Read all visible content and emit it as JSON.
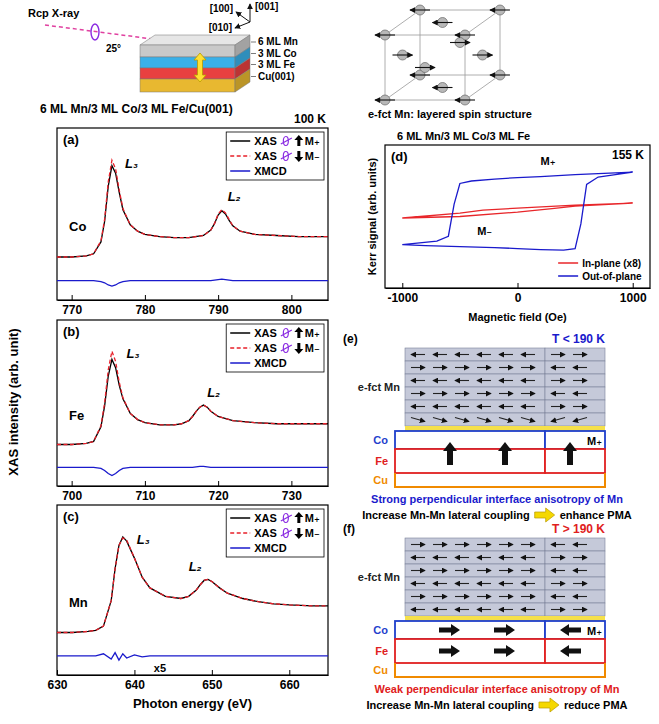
{
  "figure": {
    "title": "6 ML Mn/3 ML Co/3 ML Fe/Cu(001)",
    "temperature": "100 K",
    "y_label": "XAS intensity (arb. unit)"
  },
  "schematic": {
    "beam": "Rcp X-ray",
    "angle": "25°",
    "layers": [
      "6 ML Mn",
      "3 ML Co",
      "3 ML Fe",
      "Cu(001)"
    ],
    "colors": [
      "#c9c9c9",
      "#3ab0e8",
      "#e84040",
      "#e8b830"
    ],
    "directions": [
      "[100]",
      "[001]",
      "[010]"
    ],
    "lattice_caption": "e-fct Mn: layered spin structure"
  },
  "chart_data": [
    {
      "type": "line",
      "panel": "(a)",
      "element": "Co",
      "x": [
        768,
        770,
        772,
        773,
        774,
        774.5,
        775,
        775.5,
        776,
        776.5,
        777,
        778,
        779,
        780,
        782,
        784,
        786,
        788,
        789,
        789.5,
        790,
        790.5,
        791,
        791.5,
        792,
        793,
        795,
        798,
        801,
        805
      ],
      "xlim": [
        768,
        805
      ],
      "xticks": [
        770,
        780,
        790,
        800
      ],
      "ylim": [
        -0.3,
        1.3
      ],
      "tick_labels": "x",
      "legend": "top-right",
      "series": [
        {
          "name": "XAS",
          "state": "M₊",
          "color": "#000000",
          "line_style": "solid",
          "values": [
            0.1,
            0.1,
            0.11,
            0.13,
            0.24,
            0.43,
            0.76,
            0.95,
            0.88,
            0.7,
            0.54,
            0.4,
            0.34,
            0.31,
            0.29,
            0.28,
            0.28,
            0.3,
            0.35,
            0.41,
            0.49,
            0.53,
            0.5,
            0.44,
            0.39,
            0.34,
            0.31,
            0.3,
            0.29,
            0.29
          ]
        },
        {
          "name": "XAS",
          "state": "M₋",
          "color": "#e8202a",
          "line_style": "dashed",
          "values": [
            0.1,
            0.1,
            0.11,
            0.13,
            0.25,
            0.45,
            0.8,
            1.0,
            0.92,
            0.72,
            0.55,
            0.4,
            0.34,
            0.31,
            0.29,
            0.28,
            0.28,
            0.3,
            0.35,
            0.41,
            0.5,
            0.54,
            0.51,
            0.45,
            0.39,
            0.34,
            0.31,
            0.3,
            0.29,
            0.29
          ]
        },
        {
          "name": "XMCD",
          "color": "#1a1acc",
          "line_style": "solid",
          "values": [
            -0.12,
            -0.12,
            -0.12,
            -0.12,
            -0.13,
            -0.14,
            -0.16,
            -0.17,
            -0.16,
            -0.14,
            -0.13,
            -0.12,
            -0.12,
            -0.12,
            -0.12,
            -0.12,
            -0.12,
            -0.12,
            -0.12,
            -0.115,
            -0.11,
            -0.105,
            -0.11,
            -0.115,
            -0.12,
            -0.12,
            -0.12,
            -0.12,
            -0.12,
            -0.12
          ]
        }
      ],
      "peak_labels": [
        {
          "text": "L₃",
          "x": 777.3,
          "y": 0.93
        },
        {
          "text": "L₂",
          "x": 791.3,
          "y": 0.62
        }
      ]
    },
    {
      "type": "line",
      "panel": "(b)",
      "element": "Fe",
      "x": [
        698,
        700,
        702,
        703,
        704,
        704.5,
        705,
        705.5,
        706,
        706.5,
        707,
        708,
        709,
        710,
        712,
        714,
        715,
        716,
        716.5,
        717,
        717.5,
        718,
        718.5,
        719,
        720,
        722,
        725,
        728,
        731,
        735
      ],
      "xlim": [
        698,
        735
      ],
      "xticks": [
        700,
        710,
        720,
        730
      ],
      "ylim": [
        -0.3,
        1.3
      ],
      "tick_labels": "x",
      "legend": "top-right",
      "series": [
        {
          "name": "XAS",
          "state": "M₊",
          "color": "#000000",
          "line_style": "solid",
          "values": [
            0.1,
            0.1,
            0.11,
            0.13,
            0.27,
            0.47,
            0.76,
            0.92,
            0.84,
            0.67,
            0.54,
            0.4,
            0.34,
            0.31,
            0.29,
            0.29,
            0.3,
            0.33,
            0.37,
            0.42,
            0.46,
            0.48,
            0.46,
            0.42,
            0.37,
            0.33,
            0.31,
            0.3,
            0.3,
            0.3
          ]
        },
        {
          "name": "XAS",
          "state": "M₋",
          "color": "#e8202a",
          "line_style": "dashed",
          "values": [
            0.1,
            0.1,
            0.11,
            0.13,
            0.28,
            0.5,
            0.82,
            1.0,
            0.9,
            0.7,
            0.55,
            0.4,
            0.34,
            0.31,
            0.29,
            0.29,
            0.3,
            0.33,
            0.37,
            0.42,
            0.46,
            0.48,
            0.46,
            0.42,
            0.37,
            0.33,
            0.31,
            0.3,
            0.3,
            0.3
          ]
        },
        {
          "name": "XMCD",
          "color": "#1a1acc",
          "line_style": "solid",
          "values": [
            -0.12,
            -0.12,
            -0.12,
            -0.12,
            -0.13,
            -0.15,
            -0.18,
            -0.2,
            -0.18,
            -0.15,
            -0.13,
            -0.12,
            -0.12,
            -0.12,
            -0.12,
            -0.12,
            -0.12,
            -0.12,
            -0.12,
            -0.115,
            -0.11,
            -0.11,
            -0.115,
            -0.12,
            -0.12,
            -0.12,
            -0.12,
            -0.12,
            -0.12,
            -0.12
          ]
        }
      ],
      "peak_labels": [
        {
          "text": "L₃",
          "x": 707.5,
          "y": 0.93
        },
        {
          "text": "L₂",
          "x": 718.5,
          "y": 0.56
        }
      ]
    },
    {
      "type": "line",
      "panel": "(c)",
      "element": "Mn",
      "x_label": "Photon energy (eV)",
      "x": [
        630,
        632,
        634,
        635,
        636,
        637,
        637.5,
        638,
        638.5,
        639,
        640,
        641,
        642,
        644,
        646,
        647,
        648,
        648.5,
        649,
        649.5,
        650,
        651,
        652,
        654,
        656,
        658,
        660,
        663,
        665
      ],
      "xlim": [
        630,
        665
      ],
      "xticks": [
        630,
        640,
        650,
        660
      ],
      "ylim": [
        -0.3,
        1.3
      ],
      "tick_labels": "x",
      "legend": "top-right",
      "series": [
        {
          "name": "XAS",
          "state": "M₊",
          "color": "#000000",
          "line_style": "solid",
          "values": [
            0.1,
            0.1,
            0.11,
            0.12,
            0.16,
            0.4,
            0.7,
            0.92,
            1.0,
            0.96,
            0.8,
            0.62,
            0.52,
            0.44,
            0.42,
            0.44,
            0.5,
            0.55,
            0.59,
            0.6,
            0.58,
            0.52,
            0.47,
            0.42,
            0.39,
            0.37,
            0.36,
            0.35,
            0.35
          ]
        },
        {
          "name": "XAS",
          "state": "M₋",
          "color": "#e8202a",
          "line_style": "dashed",
          "values": [
            0.1,
            0.1,
            0.11,
            0.12,
            0.16,
            0.4,
            0.7,
            0.92,
            0.99,
            0.97,
            0.8,
            0.62,
            0.52,
            0.44,
            0.42,
            0.44,
            0.5,
            0.55,
            0.59,
            0.6,
            0.58,
            0.52,
            0.47,
            0.42,
            0.39,
            0.37,
            0.36,
            0.35,
            0.35
          ]
        },
        {
          "name": "XMCD",
          "color": "#1a1acc",
          "line_style": "solid",
          "values": [
            -0.12,
            -0.12,
            -0.12,
            -0.12,
            -0.1,
            -0.15,
            -0.09,
            -0.16,
            -0.1,
            -0.14,
            -0.11,
            -0.13,
            -0.12,
            -0.12,
            -0.12,
            -0.12,
            -0.12,
            -0.12,
            -0.12,
            -0.12,
            -0.12,
            -0.12,
            -0.12,
            -0.12,
            -0.12,
            -0.12,
            -0.12,
            -0.12,
            -0.12
          ]
        }
      ],
      "peak_labels": [
        {
          "text": "L₃",
          "x": 640.3,
          "y": 0.93
        },
        {
          "text": "L₂",
          "x": 647,
          "y": 0.68
        }
      ],
      "annotations": [
        {
          "text": "x5",
          "x": 642.5,
          "y": -0.27
        }
      ]
    },
    {
      "type": "line",
      "panel": "(d)",
      "title": "6 ML Mn/3 ML Co/3 ML Fe",
      "temperature": "155 K",
      "x_label": "Magnetic field (Oe)",
      "y_label": "Kerr signal (arb. units)",
      "xlim": [
        -1150,
        1150
      ],
      "xticks": [
        -1000,
        0,
        1000
      ],
      "ylim": [
        -1.5,
        1.4
      ],
      "tick_labels": "x",
      "legend": "bottom-right",
      "series": [
        {
          "name": "In-plane (x8)",
          "color": "#e8262a",
          "line_style": "solid",
          "x": [
            1000,
            500,
            0,
            -300,
            -500,
            -1000,
            -500,
            0,
            300,
            500,
            1000
          ],
          "values": [
            0.22,
            0.18,
            0.12,
            0.08,
            0.02,
            -0.08,
            -0.05,
            0.04,
            0.11,
            0.16,
            0.22
          ]
        },
        {
          "name": "Out-of-plane",
          "color": "#1a1acc",
          "line_style": "solid",
          "x": [
            1000,
            800,
            500,
            200,
            0,
            -200,
            -400,
            -500,
            -550,
            -600,
            -700,
            -1000,
            -800,
            -500,
            -200,
            0,
            200,
            400,
            500,
            550,
            600,
            700,
            1000
          ],
          "values": [
            0.85,
            0.83,
            0.8,
            0.76,
            0.74,
            0.71,
            0.67,
            0.62,
            0.2,
            -0.45,
            -0.55,
            -0.62,
            -0.64,
            -0.66,
            -0.68,
            -0.7,
            -0.72,
            -0.73,
            -0.7,
            -0.2,
            0.6,
            0.75,
            0.85
          ]
        }
      ],
      "annotations": [
        {
          "text": "M₊",
          "x": 200,
          "y": 1.0
        },
        {
          "text": "M₋",
          "x": -350,
          "y": -0.42
        }
      ]
    }
  ],
  "states": [
    {
      "panel": "(e)",
      "temperature": "T < 190 K",
      "color": "#1a1acc",
      "mn_label": "e-fct Mn",
      "layers": [
        "Co",
        "Fe",
        "Cu"
      ],
      "colors": [
        "#1f3fcc",
        "#e02020",
        "#f08a00"
      ],
      "moment": "M₊",
      "caption": "Strong perpendicular interface anisotropy of Mn",
      "effect": "Increase Mn-Mn lateral coupling",
      "result": "enhance PMA"
    },
    {
      "panel": "(f)",
      "temperature": "T > 190 K",
      "color": "#e02020",
      "mn_label": "e-fct Mn",
      "layers": [
        "Co",
        "Fe",
        "Cu"
      ],
      "colors": [
        "#1f3fcc",
        "#e02020",
        "#f08a00"
      ],
      "moment": "M₊",
      "caption": "Weak perpendicular interface anisotropy of Mn",
      "effect": "Increase Mn-Mn lateral coupling",
      "result": "reduce PMA"
    }
  ]
}
